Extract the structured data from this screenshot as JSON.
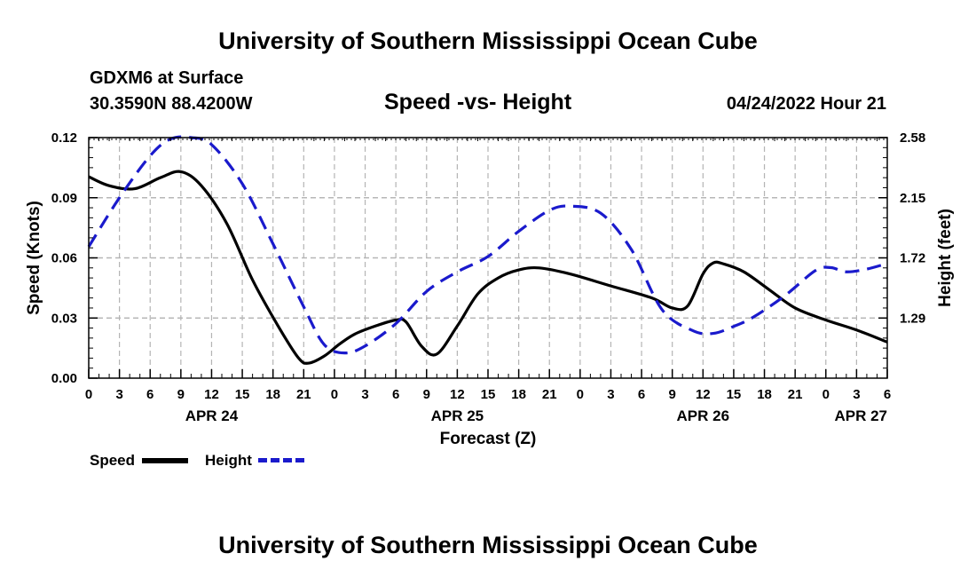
{
  "header": {
    "title": "University of Southern Mississippi Ocean Cube",
    "station": "GDXM6 at Surface",
    "coords": "30.3590N  88.4200W",
    "plot_title": "Speed -vs- Height",
    "datetime": "04/24/2022 Hour 21"
  },
  "footer": {
    "title": "University of Southern Mississippi Ocean Cube"
  },
  "legend": {
    "speed_label": "Speed",
    "height_label": "Height"
  },
  "colors": {
    "speed": "#000000",
    "height": "#1a1acc",
    "grid": "#b4b4b4"
  },
  "chart_data": {
    "type": "line",
    "title": "Speed -vs- Height",
    "xlabel": "Forecast (Z)",
    "ylabel_left": "Speed (Knots)",
    "ylabel_right": "Height (feet)",
    "x_unit": "hours since 04/24 00Z",
    "xlim": [
      0,
      78
    ],
    "x_ticks": [
      0,
      3,
      6,
      9,
      12,
      15,
      18,
      21,
      24,
      27,
      30,
      33,
      36,
      39,
      42,
      45,
      48,
      51,
      54,
      57,
      60,
      63,
      66,
      69,
      72,
      75,
      78
    ],
    "x_tick_labels": [
      "0",
      "3",
      "6",
      "9",
      "12",
      "15",
      "18",
      "21",
      "0",
      "3",
      "6",
      "9",
      "12",
      "15",
      "18",
      "21",
      "0",
      "3",
      "6",
      "9",
      "12",
      "15",
      "18",
      "21",
      "0",
      "3",
      "6"
    ],
    "date_labels": [
      {
        "x": 12,
        "label": "APR 24"
      },
      {
        "x": 36,
        "label": "APR 25"
      },
      {
        "x": 60,
        "label": "APR 26"
      },
      {
        "x": 78,
        "label": "APR 27"
      }
    ],
    "ylim_left": [
      0,
      0.12
    ],
    "y_ticks_left": [
      0,
      0.03,
      0.06,
      0.09,
      0.12
    ],
    "y_tick_labels_left": [
      "0.00",
      "0.03",
      "0.06",
      "0.09",
      "0.12"
    ],
    "ylim_right": [
      0.86,
      2.58
    ],
    "y_ticks_right": [
      1.29,
      1.72,
      2.15,
      2.58
    ],
    "y_tick_labels_right": [
      "1.29",
      "1.72",
      "2.15",
      "2.58"
    ],
    "grid": true,
    "series": [
      {
        "name": "Speed",
        "axis": "left",
        "style": "solid",
        "x": [
          0,
          2,
          4.5,
          7,
          9,
          11,
          13.5,
          16,
          18.5,
          20.5,
          21.5,
          23,
          24.5,
          26,
          28,
          30,
          31,
          32.5,
          34,
          36,
          38,
          40,
          42,
          44,
          47,
          51,
          55,
          57,
          58.5,
          60,
          61,
          62,
          64,
          66.5,
          69,
          72,
          75,
          78
        ],
        "values": [
          0.1005,
          0.096,
          0.0945,
          0.1,
          0.103,
          0.096,
          0.077,
          0.049,
          0.026,
          0.01,
          0.0075,
          0.011,
          0.017,
          0.022,
          0.026,
          0.029,
          0.028,
          0.016,
          0.012,
          0.026,
          0.042,
          0.05,
          0.054,
          0.055,
          0.052,
          0.046,
          0.04,
          0.035,
          0.036,
          0.052,
          0.0575,
          0.057,
          0.053,
          0.044,
          0.035,
          0.029,
          0.024,
          0.018
        ]
      },
      {
        "name": "Height",
        "axis": "right",
        "style": "dashed",
        "x": [
          0,
          3,
          6,
          8,
          10,
          12,
          15,
          18,
          21,
          23,
          25,
          27,
          30,
          33,
          36,
          39,
          42,
          45,
          47,
          50,
          53,
          56,
          59,
          61,
          63,
          65,
          68,
          71,
          72.5,
          74,
          76,
          78
        ],
        "values": [
          1.8,
          2.15,
          2.45,
          2.57,
          2.58,
          2.53,
          2.25,
          1.82,
          1.37,
          1.1,
          1.04,
          1.09,
          1.25,
          1.48,
          1.62,
          1.73,
          1.91,
          2.06,
          2.09,
          2.04,
          1.78,
          1.35,
          1.2,
          1.18,
          1.23,
          1.3,
          1.45,
          1.63,
          1.65,
          1.62,
          1.64,
          1.68
        ]
      }
    ]
  }
}
